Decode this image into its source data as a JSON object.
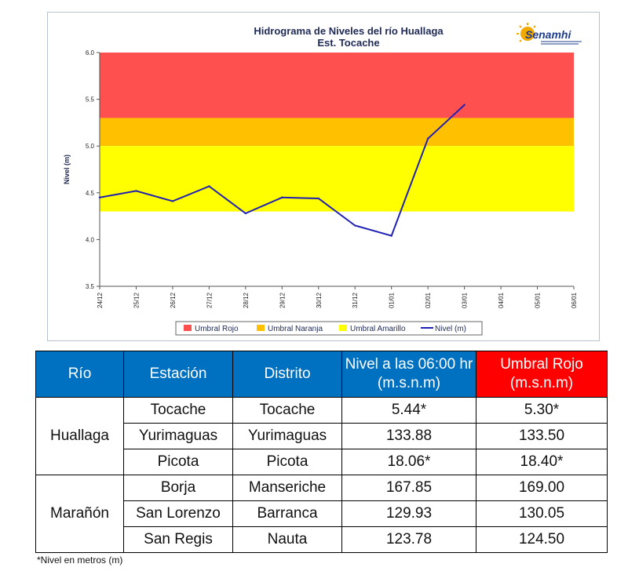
{
  "chart_data": {
    "type": "line",
    "title": "Hidrograma de Niveles del río Huallaga",
    "subtitle": "Est. Tocache",
    "ylabel": "Nivel (m)",
    "xlabel": "",
    "ylim": [
      3.5,
      6.0
    ],
    "yticks": [
      "3.5",
      "4.0",
      "4.5",
      "5.0",
      "5.5",
      "6.0"
    ],
    "categories": [
      "24/12",
      "25/12",
      "26/12",
      "27/12",
      "28/12",
      "29/12",
      "30/12",
      "31/12",
      "01/01",
      "02/01",
      "03/01",
      "04/01",
      "05/01",
      "06/01"
    ],
    "series": [
      {
        "name": "Nivel (m)",
        "color": "#1f1fb4",
        "values": [
          4.45,
          4.52,
          4.41,
          4.57,
          4.28,
          4.45,
          4.44,
          4.15,
          4.04,
          5.08,
          5.44,
          null,
          null,
          null
        ]
      }
    ],
    "bands": [
      {
        "name": "Umbral Rojo",
        "color": "#ff5050",
        "from": 5.3,
        "to": 6.0
      },
      {
        "name": "Umbral Naranja",
        "color": "#ffc000",
        "from": 5.0,
        "to": 5.3
      },
      {
        "name": "Umbral Amarillo",
        "color": "#ffff00",
        "from": 4.3,
        "to": 5.0
      }
    ],
    "legend": "bottom",
    "grid": false
  },
  "logo": {
    "text": "Senamhi",
    "color": "#1f3d8a",
    "sun_color": "#f2a900"
  },
  "table": {
    "headers": [
      "Río",
      "Estación",
      "Distrito",
      "Nivel a las 06:00 hr  (m.s.n.m)",
      "Umbral Rojo (m.s.n.m)"
    ],
    "header_colors": {
      "default": "#0070c0",
      "umbral": "#ff0000"
    },
    "groups": [
      {
        "river": "Huallaga",
        "rows": [
          [
            "Tocache",
            "Tocache",
            "5.44*",
            "5.30*"
          ],
          [
            "Yurimaguas",
            "Yurimaguas",
            "133.88",
            "133.50"
          ],
          [
            "Picota",
            "Picota",
            "18.06*",
            "18.40*"
          ]
        ]
      },
      {
        "river": "Marañón",
        "rows": [
          [
            "Borja",
            "Manseriche",
            "167.85",
            "169.00"
          ],
          [
            "San Lorenzo",
            "Barranca",
            "129.93",
            "130.05"
          ],
          [
            "San Regis",
            "Nauta",
            "123.78",
            "124.50"
          ]
        ]
      }
    ]
  },
  "footnote": "*Nivel en metros (m)"
}
